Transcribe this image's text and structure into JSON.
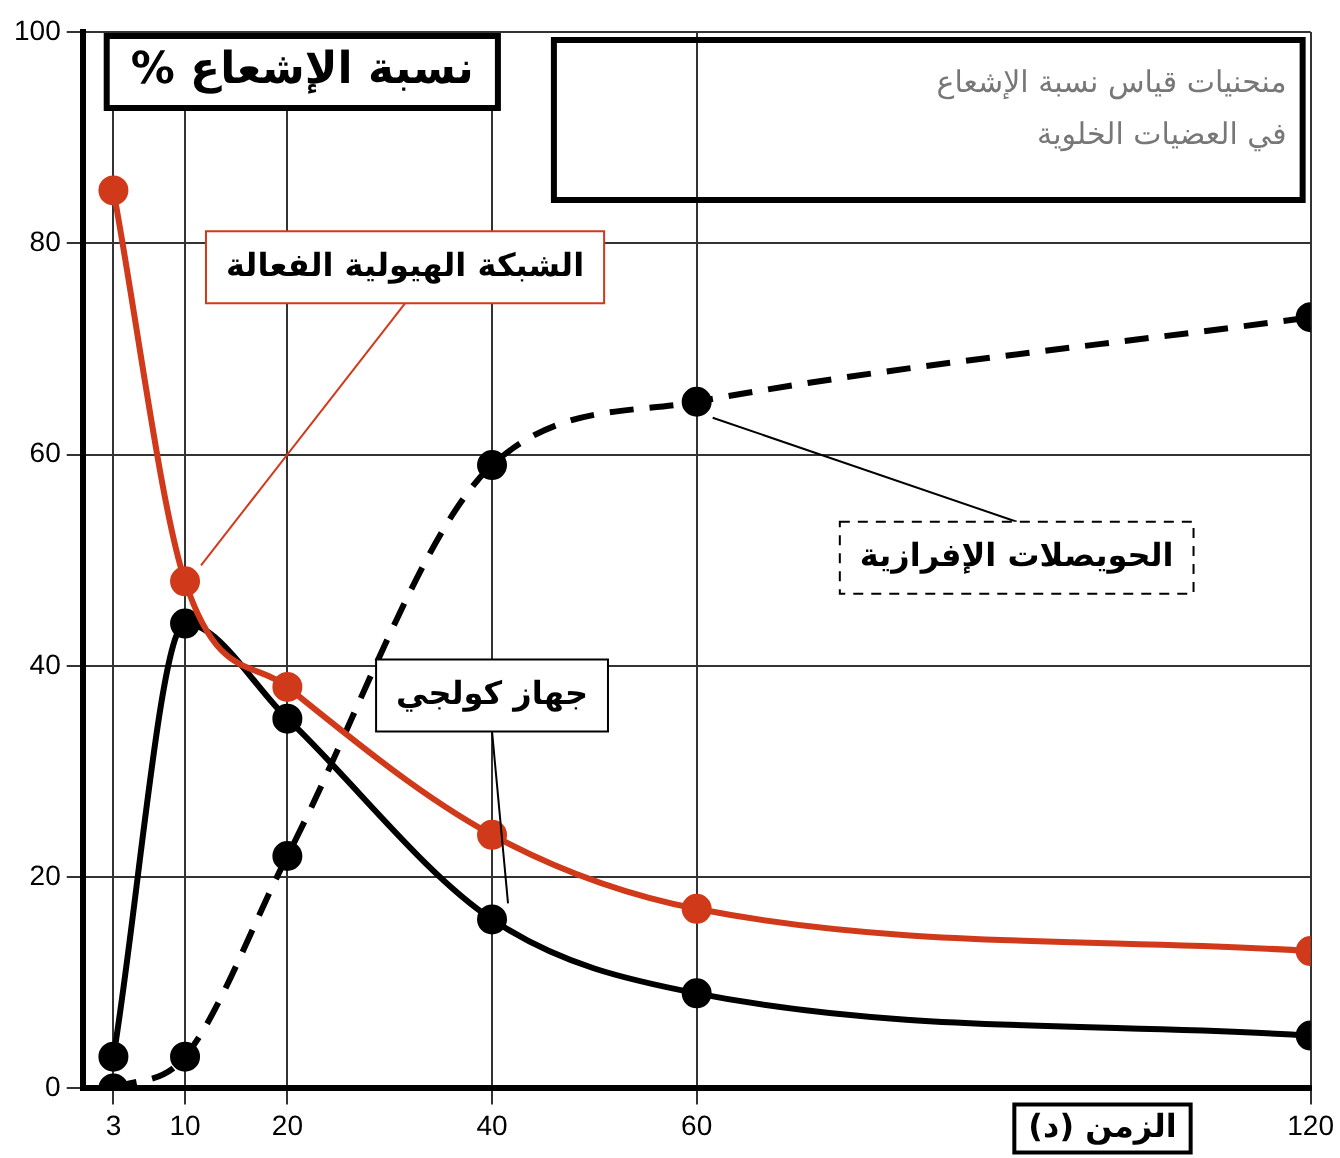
{
  "chart_data": {
    "type": "line",
    "title": "منحنيات قياس نسبة الإشعاع في العضيات الخلوية",
    "xlabel": "الزمن (د)",
    "ylabel": "نسبة الإشعاع %",
    "x": [
      3,
      10,
      20,
      40,
      60,
      120
    ],
    "series": [
      {
        "name": "الشبكة الهيولية الفعالة",
        "color": "#d03a1a",
        "values": [
          85,
          48,
          38,
          24,
          17,
          13
        ],
        "line_style": "solid"
      },
      {
        "name": "جهاز كولجي",
        "color": "#000000",
        "values": [
          3,
          44,
          35,
          16,
          9,
          5
        ],
        "line_style": "solid"
      },
      {
        "name": "الحويصلات الإفرازية",
        "color": "#000000",
        "values": [
          0,
          3,
          22,
          59,
          65,
          73
        ],
        "line_style": "dashed"
      }
    ],
    "xlim": [
      0,
      120
    ],
    "xticks": [
      3,
      10,
      20,
      40,
      60,
      120
    ],
    "ylim": [
      0,
      100
    ],
    "yticks": [
      0,
      20,
      40,
      60,
      80,
      100
    ],
    "grid": true,
    "legend": false,
    "marker": "circle"
  }
}
